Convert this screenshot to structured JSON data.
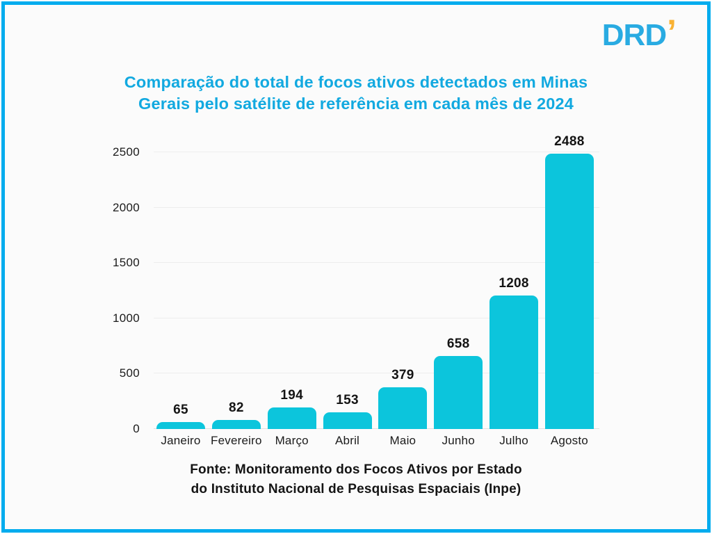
{
  "logo": {
    "text": "DRD",
    "accent": "’"
  },
  "title_lines": [
    "Comparação do total de focos ativos detectados em Minas",
    "Gerais pelo satélite de referência em cada mês de 2024"
  ],
  "source_lines": [
    "Fonte: Monitoramento dos Focos Ativos por Estado",
    "do Instituto Nacional de Pesquisas Espaciais (Inpe)"
  ],
  "colors": {
    "frame": "#00ACEE",
    "title": "#12A9E0",
    "logo_blue": "#29ABE2",
    "logo_accent": "#F9B233",
    "bar": "#0CC5DC",
    "grid": "#EDEDED",
    "text": "#1A1A1A",
    "background": "#FBFBFB"
  },
  "chart_data": {
    "type": "bar",
    "title": "Comparação do total de focos ativos detectados em Minas Gerais pelo satélite de referência em cada mês de 2024",
    "categories": [
      "Janeiro",
      "Fevereiro",
      "Março",
      "Abril",
      "Maio",
      "Junho",
      "Julho",
      "Agosto"
    ],
    "values": [
      65,
      82,
      194,
      153,
      379,
      658,
      1208,
      2488
    ],
    "xlabel": "",
    "ylabel": "",
    "ylim": [
      0,
      2500
    ],
    "yticks": [
      0,
      500,
      1000,
      1500,
      2000,
      2500
    ],
    "grid": true,
    "legend": false,
    "bar_color": "#0CC5DC",
    "value_labels": true,
    "source": "Fonte: Monitoramento dos Focos Ativos por Estado do Instituto Nacional de Pesquisas Espaciais (Inpe)"
  }
}
